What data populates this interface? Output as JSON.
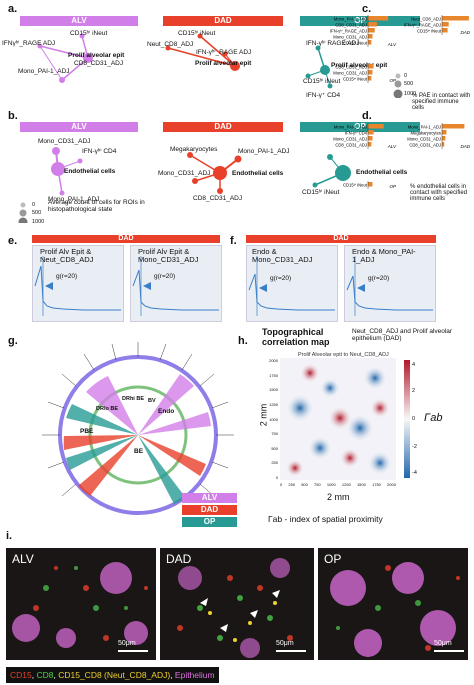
{
  "colors": {
    "alv": "#d27ee8",
    "dad": "#e8402a",
    "op": "#279b93",
    "orange_bar": "#e8862d",
    "blue_line": "#3a7dc9",
    "green_ring": "#7ec27e",
    "purple_ring": "#8e7ee8"
  },
  "panel_a": {
    "letter": "a.",
    "headers": [
      "ALV",
      "DAD",
      "OP"
    ],
    "alv_nodes": [
      "CD15ʰⁱ iNeut",
      "IFNγʰⁱ_RAGE ADJ",
      "Prolif alveolar epit",
      "CD8_CD31_ADJ",
      "Mono_PAI-1_ADJ"
    ],
    "dad_nodes": [
      "CD15ʰⁱ iNeut",
      "Neut_CD8_ADJ",
      "IFN-γʰⁱ_RAGE ADJ",
      "Prolif alveolar epit"
    ],
    "op_nodes": [
      "IFN-γʰⁱ RAGE ADJ",
      "Prolif alveolar epit",
      "CD15ʰⁱ iNeut",
      "IFN-γ⁺ CD4"
    ],
    "legend_values": [
      "0",
      "500",
      "1000"
    ]
  },
  "panel_b": {
    "letter": "b.",
    "headers": [
      "ALV",
      "DAD",
      "OP"
    ],
    "alv_nodes": [
      "Mono_CD31_ADJ",
      "IFN-γʰⁱ CD4",
      "Endothelial cells",
      "Mono_PAI-1_ADJ"
    ],
    "dad_nodes": [
      "Megakaryocytes",
      "Mono_PAI-1_ADJ",
      "Mono_CD31_ADJ",
      "Endothelial cells",
      "CD8_CD31_ADJ"
    ],
    "op_nodes": [
      "Endothelial cells",
      "CD15ʰⁱ iNeut"
    ],
    "legend_values": [
      "0",
      "500",
      "1000"
    ],
    "legend_caption": "Average count of cells for ROIs in histopathological state"
  },
  "panel_c": {
    "letter": "c.",
    "caption": "% PAE in contact with specified immune cells",
    "alv_labels": [
      "Mono_PAI-1_ADJ",
      "CD8_CD31_ADJ",
      "IFN-γʰⁱ_RAGE_ADJ",
      "Mono_CD31_ADJ",
      "CD15ʰⁱ iNeut"
    ],
    "alv_values": [
      18,
      8,
      6,
      4,
      3
    ],
    "dad_labels": [
      "Neut_CD8_ADJ",
      "IFN-γʰⁱ_RAGE_ADJ",
      "CD15ʰⁱ iNeut"
    ],
    "dad_values": [
      24,
      6,
      5
    ],
    "op_labels": [
      "CD8_CD31_ADJ",
      "Mono_CD31_ADJ",
      "CD15ʰⁱ iNeut"
    ],
    "op_values": [
      5,
      4,
      3
    ],
    "tags": [
      "ALV",
      "DAD",
      "OP"
    ]
  },
  "panel_d": {
    "letter": "d.",
    "caption": "% endothelial cells in contact with specified immune cells",
    "alv_labels": [
      "Mono_PAI-1_ADJ",
      "IFN-γʰⁱ CD4",
      "Mono_CD31_ADJ",
      "CD8_CD31_ADJ"
    ],
    "alv_values": [
      14,
      5,
      4,
      3
    ],
    "dad_labels": [
      "Mono_PAI-1_ADJ",
      "Megakaryocytes",
      "Mono_CD31_ADJ",
      "CD8_CD31_ADJ"
    ],
    "dad_values": [
      20,
      4,
      3,
      2
    ],
    "op_labels": [
      "CD15ʰⁱ iNeut"
    ],
    "op_values": [
      4
    ],
    "tags": [
      "ALV",
      "DAD",
      "OP"
    ]
  },
  "panel_e": {
    "letter": "e.",
    "header": "DAD",
    "titles": [
      "Prolif Alv Epit & Neut_CD8_ADJ",
      "Prolif Alv Epit & Mono_CD31_ADJ"
    ],
    "annotation": "g(r=20)"
  },
  "panel_f": {
    "letter": "f.",
    "header": "DAD",
    "titles": [
      "Endo & Mono_CD31_ADJ",
      "Endo & Mono_PAI-1_ADJ"
    ],
    "annotation": "g(r=20)"
  },
  "panel_g": {
    "letter": "g.",
    "inner_labels": [
      "PBE",
      "Endo",
      "BE",
      "DRhi BE",
      "DRlo BE",
      "BV"
    ],
    "legend": [
      "ALV",
      "DAD",
      "OP"
    ]
  },
  "panel_h": {
    "letter": "h.",
    "title": "Topographical correlation map",
    "subtitle": "Neut_CD8_ADJ and Prolif alveolar epithelium (DAD)",
    "inner_title": "Prolif Alveolar epit to Neut_CD8_ADJ",
    "ylabel": "2 mm",
    "xlabel": "2 mm",
    "colorbar_label": "Γab",
    "colorbar_ticks": [
      "4",
      "2",
      "0",
      "-2",
      "-4"
    ],
    "x_ticks": [
      "0",
      "250",
      "500",
      "750",
      "1000",
      "1250",
      "1500",
      "1750",
      "2000"
    ],
    "y_ticks": [
      "2000",
      "1750",
      "1500",
      "1250",
      "1000",
      "750",
      "500",
      "250",
      "0"
    ],
    "footnote": "Γab - index of spatial proximity"
  },
  "panel_i": {
    "letter": "i.",
    "labels": [
      "ALV",
      "DAD",
      "OP"
    ],
    "scale": "50μm",
    "legend_parts": [
      "CD15",
      "CD8",
      "CD15_CD8 (Neut_CD8_ADJ)",
      "Epithelium"
    ],
    "legend_colors": [
      "#e8402a",
      "#4fd04f",
      "#f0d030",
      "#e070e0"
    ]
  }
}
